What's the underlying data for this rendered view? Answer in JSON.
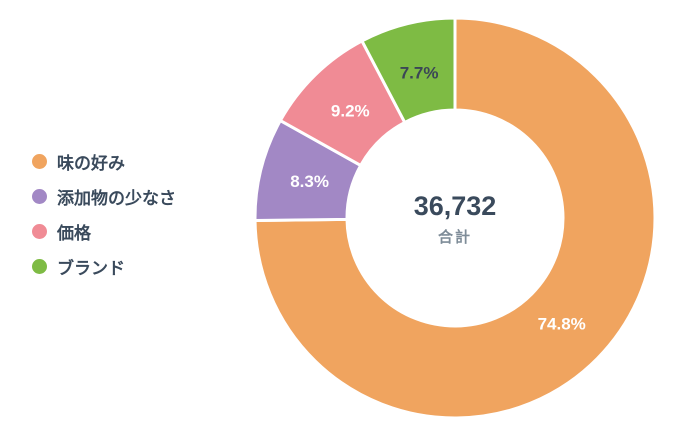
{
  "chart_data": {
    "type": "pie",
    "donut": true,
    "categories": [
      "味の好み",
      "添加物の少なさ",
      "価格",
      "ブランド"
    ],
    "values": [
      74.8,
      8.3,
      9.2,
      7.7
    ],
    "labels": [
      "74.8%",
      "8.3%",
      "9.2%",
      "7.7%"
    ],
    "colors": [
      "#F0A45F",
      "#A288C5",
      "#F08B95",
      "#7EBB44"
    ],
    "label_colors": [
      "#FFFFFF",
      "#FFFFFF",
      "#FFFFFF",
      "#3B4656"
    ],
    "start_angle": 0,
    "direction": "clockwise",
    "legend_position": "left",
    "center": {
      "total": "36,732",
      "caption": "合計"
    },
    "text_color": "#3A4A5C",
    "caption_color": "#7E8C98",
    "background": "#FFFFFF"
  }
}
